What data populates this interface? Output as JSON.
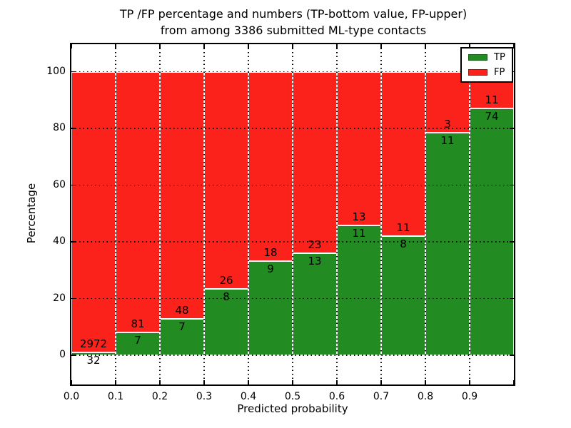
{
  "chart_data": {
    "type": "bar",
    "stacked": true,
    "normalized_to_percent": true,
    "title_lines": [
      "TP /FP percentage and numbers (TP-bottom value, FP-upper)",
      "from among 3386 submitted ML-type contacts"
    ],
    "xlabel": "Predicted probability",
    "ylabel": "Percentage",
    "bin_edges": [
      0.0,
      0.1,
      0.2,
      0.3,
      0.4,
      0.5,
      0.6,
      0.7,
      0.8,
      0.9,
      1.0
    ],
    "xtick_labels": [
      "0.0",
      "0.1",
      "0.2",
      "0.3",
      "0.4",
      "0.5",
      "0.6",
      "0.7",
      "0.8",
      "0.9"
    ],
    "ytick_values": [
      0,
      20,
      40,
      60,
      80,
      100
    ],
    "xlim": [
      0.0,
      1.0
    ],
    "ylim": [
      -10.3,
      109.7
    ],
    "grid": true,
    "legend_position": "upper right",
    "series": [
      {
        "name": "TP",
        "color": "#228b22",
        "edge_color": "#155715",
        "counts": [
          32,
          7,
          7,
          8,
          9,
          13,
          11,
          8,
          11,
          74
        ]
      },
      {
        "name": "FP",
        "color": "#fa221a",
        "edge_color": "#8f140c",
        "counts": [
          2972,
          81,
          48,
          26,
          18,
          23,
          13,
          11,
          3,
          11
        ]
      }
    ]
  }
}
